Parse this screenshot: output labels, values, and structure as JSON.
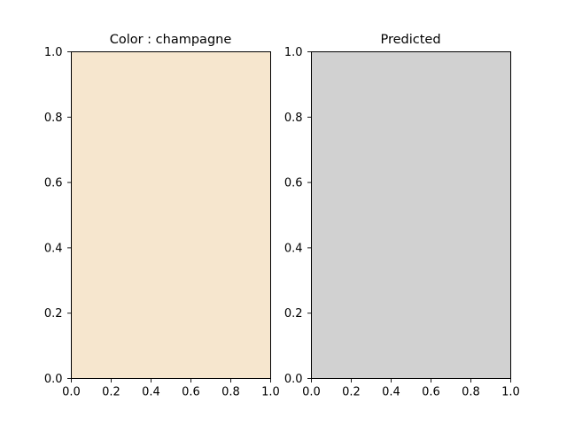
{
  "chart_data": [
    {
      "type": "area",
      "title": "Color : champagne",
      "fill_color": "#F6E6CE",
      "xlim": [
        0.0,
        1.0
      ],
      "ylim": [
        0.0,
        1.0
      ],
      "x_ticks": [
        "0.0",
        "0.2",
        "0.4",
        "0.6",
        "0.8",
        "1.0"
      ],
      "y_ticks": [
        "0.0",
        "0.2",
        "0.4",
        "0.6",
        "0.8",
        "1.0"
      ],
      "grid": false
    },
    {
      "type": "area",
      "title": "Predicted",
      "fill_color": "#D1D1D1",
      "xlim": [
        0.0,
        1.0
      ],
      "ylim": [
        0.0,
        1.0
      ],
      "x_ticks": [
        "0.0",
        "0.2",
        "0.4",
        "0.6",
        "0.8",
        "1.0"
      ],
      "y_ticks": [
        "0.0",
        "0.2",
        "0.4",
        "0.6",
        "0.8",
        "1.0"
      ],
      "grid": false
    }
  ]
}
